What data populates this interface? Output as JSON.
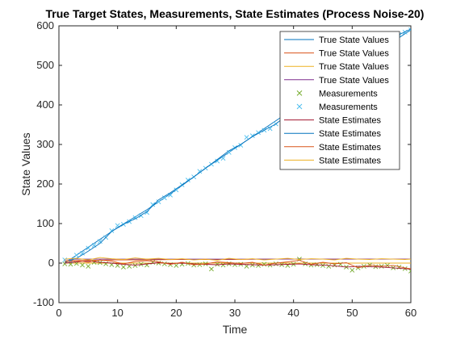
{
  "chart_data": {
    "type": "line",
    "title": "True Target States, Measurements, State Estimates (Process Noise-20)",
    "xlabel": "Time",
    "ylabel": "State Values",
    "xlim": [
      0,
      60
    ],
    "ylim": [
      -100,
      600
    ],
    "xticks": [
      0,
      10,
      20,
      30,
      40,
      50,
      60
    ],
    "yticks": [
      -100,
      0,
      100,
      200,
      300,
      400,
      500,
      600
    ],
    "grid": false,
    "legend_position": "top-right",
    "series": [
      {
        "name": "True State Values",
        "kind": "line",
        "color": "#0072BD",
        "x": [
          1,
          5,
          10,
          15,
          20,
          25,
          30,
          35,
          40,
          45,
          50,
          55,
          60
        ],
        "y": [
          0,
          40,
          90,
          135,
          185,
          240,
          290,
          340,
          390,
          440,
          490,
          540,
          590
        ]
      },
      {
        "name": "True State Values",
        "kind": "line",
        "color": "#D95319",
        "x": [
          1,
          5,
          10,
          15,
          20,
          25,
          30,
          35,
          40,
          45,
          50,
          55,
          60
        ],
        "y": [
          6,
          7,
          8,
          8,
          9,
          9,
          9,
          10,
          10,
          10,
          10,
          10,
          10
        ]
      },
      {
        "name": "True State Values",
        "kind": "line",
        "color": "#EDB120",
        "x": [
          1,
          10,
          20,
          30,
          40,
          50,
          60
        ],
        "y": [
          0,
          0,
          0,
          0,
          0,
          0,
          0
        ]
      },
      {
        "name": "True State Values",
        "kind": "line",
        "color": "#7E2F8E",
        "x": [
          1,
          10,
          20,
          30,
          40,
          50,
          60
        ],
        "y": [
          10,
          10,
          10,
          10,
          10,
          10,
          10
        ]
      },
      {
        "name": "Measurements",
        "kind": "marker",
        "color": "#77AC30",
        "x": [
          1,
          2,
          3,
          4,
          5,
          6,
          7,
          8,
          9,
          10,
          11,
          12,
          13,
          14,
          15,
          16,
          17,
          18,
          19,
          20,
          21,
          22,
          23,
          24,
          25,
          26,
          27,
          28,
          29,
          30,
          31,
          32,
          33,
          34,
          35,
          36,
          37,
          38,
          39,
          40,
          41,
          42,
          43,
          44,
          45,
          46,
          47,
          48,
          49,
          50,
          51,
          52,
          53,
          54,
          55,
          56,
          57,
          58,
          59,
          60
        ],
        "y": [
          -2,
          -3,
          -1,
          -5,
          -8,
          2,
          1,
          -2,
          -4,
          -6,
          -10,
          -8,
          -6,
          -3,
          -5,
          2,
          0,
          -2,
          -4,
          -6,
          -3,
          -1,
          -5,
          -4,
          -2,
          -15,
          -3,
          -5,
          -2,
          -4,
          -3,
          -8,
          -5,
          -6,
          -3,
          -5,
          -2,
          -4,
          -6,
          -3,
          10,
          -2,
          -5,
          -4,
          -6,
          -8,
          -5,
          -3,
          -10,
          -18,
          -12,
          -8,
          -5,
          -9,
          -8,
          -6,
          -12,
          -10,
          -14,
          -20
        ]
      },
      {
        "name": "Measurements",
        "kind": "marker",
        "color": "#4DBEEE",
        "x": [
          1,
          2,
          3,
          4,
          5,
          6,
          7,
          8,
          9,
          10,
          11,
          12,
          13,
          14,
          15,
          16,
          17,
          18,
          19,
          20,
          21,
          22,
          23,
          24,
          25,
          26,
          27,
          28,
          29,
          30,
          31,
          32,
          33,
          34,
          35,
          36,
          37,
          38,
          39,
          40,
          41,
          42,
          43,
          44,
          45,
          46,
          47,
          48,
          49,
          50,
          51,
          52,
          53,
          54,
          55,
          56,
          57,
          58,
          59,
          60
        ],
        "y": [
          8,
          5,
          20,
          25,
          38,
          45,
          55,
          65,
          82,
          95,
          98,
          105,
          115,
          120,
          128,
          148,
          155,
          165,
          172,
          185,
          198,
          210,
          218,
          232,
          240,
          250,
          258,
          265,
          280,
          292,
          298,
          318,
          322,
          330,
          336,
          340,
          352,
          372,
          385,
          395,
          405,
          418,
          425,
          440,
          448,
          458,
          468,
          480,
          492,
          500,
          510,
          520,
          532,
          542,
          552,
          560,
          570,
          578,
          584,
          590
        ]
      },
      {
        "name": "State Estimates",
        "kind": "line",
        "color": "#A2142F",
        "x": [
          1,
          3,
          5,
          7,
          9,
          11,
          13,
          15,
          17,
          19,
          21,
          23,
          25,
          27,
          29,
          31,
          33,
          35,
          37,
          39,
          41,
          43,
          45,
          47,
          49,
          51,
          53,
          55,
          57,
          59,
          60
        ],
        "y": [
          0,
          3,
          5,
          2,
          0,
          -3,
          -5,
          -2,
          1,
          -1,
          0,
          -2,
          -3,
          -4,
          -2,
          -3,
          -4,
          -5,
          -4,
          -3,
          -2,
          -4,
          -5,
          -7,
          -10,
          -8,
          -9,
          -10,
          -12,
          -14,
          -15
        ]
      },
      {
        "name": "State Estimates",
        "kind": "line",
        "color": "#0072BD",
        "x": [
          1,
          3,
          5,
          7,
          9,
          11,
          13,
          15,
          17,
          19,
          21,
          23,
          25,
          27,
          29,
          31,
          33,
          35,
          37,
          39,
          41,
          43,
          45,
          47,
          49,
          51,
          53,
          55,
          57,
          59,
          60
        ],
        "y": [
          2,
          12,
          30,
          50,
          80,
          98,
          112,
          130,
          160,
          178,
          198,
          218,
          240,
          262,
          284,
          300,
          320,
          336,
          352,
          376,
          400,
          420,
          440,
          460,
          490,
          510,
          530,
          550,
          570,
          585,
          592
        ]
      },
      {
        "name": "State Estimates",
        "kind": "line",
        "color": "#D95319",
        "x": [
          1,
          3,
          5,
          7,
          9,
          11,
          13,
          15,
          17,
          19,
          21,
          23,
          25,
          27,
          29,
          31,
          33,
          35,
          37,
          39,
          41,
          43,
          45,
          47,
          49,
          51,
          53,
          55,
          57,
          59,
          60
        ],
        "y": [
          4,
          6,
          2,
          8,
          5,
          -2,
          4,
          6,
          3,
          -3,
          2,
          -4,
          -2,
          3,
          1,
          -1,
          2,
          -5,
          0,
          3,
          7,
          -3,
          2,
          -2,
          1,
          -12,
          -5,
          -8,
          -6,
          -12,
          -14
        ]
      },
      {
        "name": "State Estimates",
        "kind": "line",
        "color": "#EDB120",
        "x": [
          1,
          3,
          5,
          7,
          9,
          11,
          13,
          15,
          17,
          19,
          21,
          23,
          25,
          27,
          29,
          31,
          33,
          35,
          37,
          39,
          41,
          43,
          45,
          47,
          49,
          51,
          53,
          55,
          57,
          59,
          60
        ],
        "y": [
          10,
          12,
          8,
          14,
          11,
          9,
          13,
          10,
          12,
          9,
          11,
          8,
          10,
          7,
          12,
          9,
          11,
          8,
          10,
          12,
          9,
          11,
          10,
          8,
          12,
          10,
          9,
          11,
          10,
          9,
          10
        ]
      }
    ]
  }
}
